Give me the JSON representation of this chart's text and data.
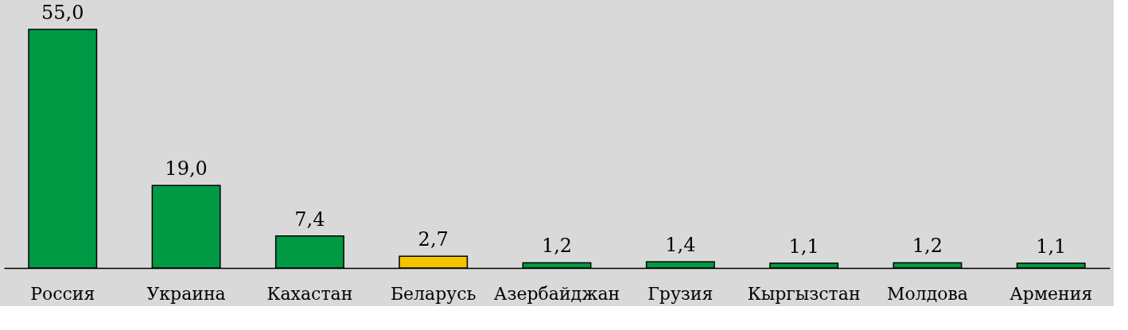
{
  "chart_data": {
    "type": "bar",
    "categories": [
      "Россия",
      "Украина",
      "Кахастан",
      "Беларусь",
      "Азербайджан",
      "Грузия",
      "Кыргызстан",
      "Молдова",
      "Армения"
    ],
    "values": [
      55.0,
      19.0,
      7.4,
      2.7,
      1.2,
      1.4,
      1.1,
      1.2,
      1.1
    ],
    "value_labels": [
      "55,0",
      "19,0",
      "7,4",
      "2,7",
      "1,2",
      "1,4",
      "1,1",
      "1,2",
      "1,1"
    ],
    "colors": [
      "#009a44",
      "#009a44",
      "#009a44",
      "#f5c400",
      "#009a44",
      "#009a44",
      "#009a44",
      "#009a44",
      "#009a44"
    ],
    "data_labels": false
  }
}
